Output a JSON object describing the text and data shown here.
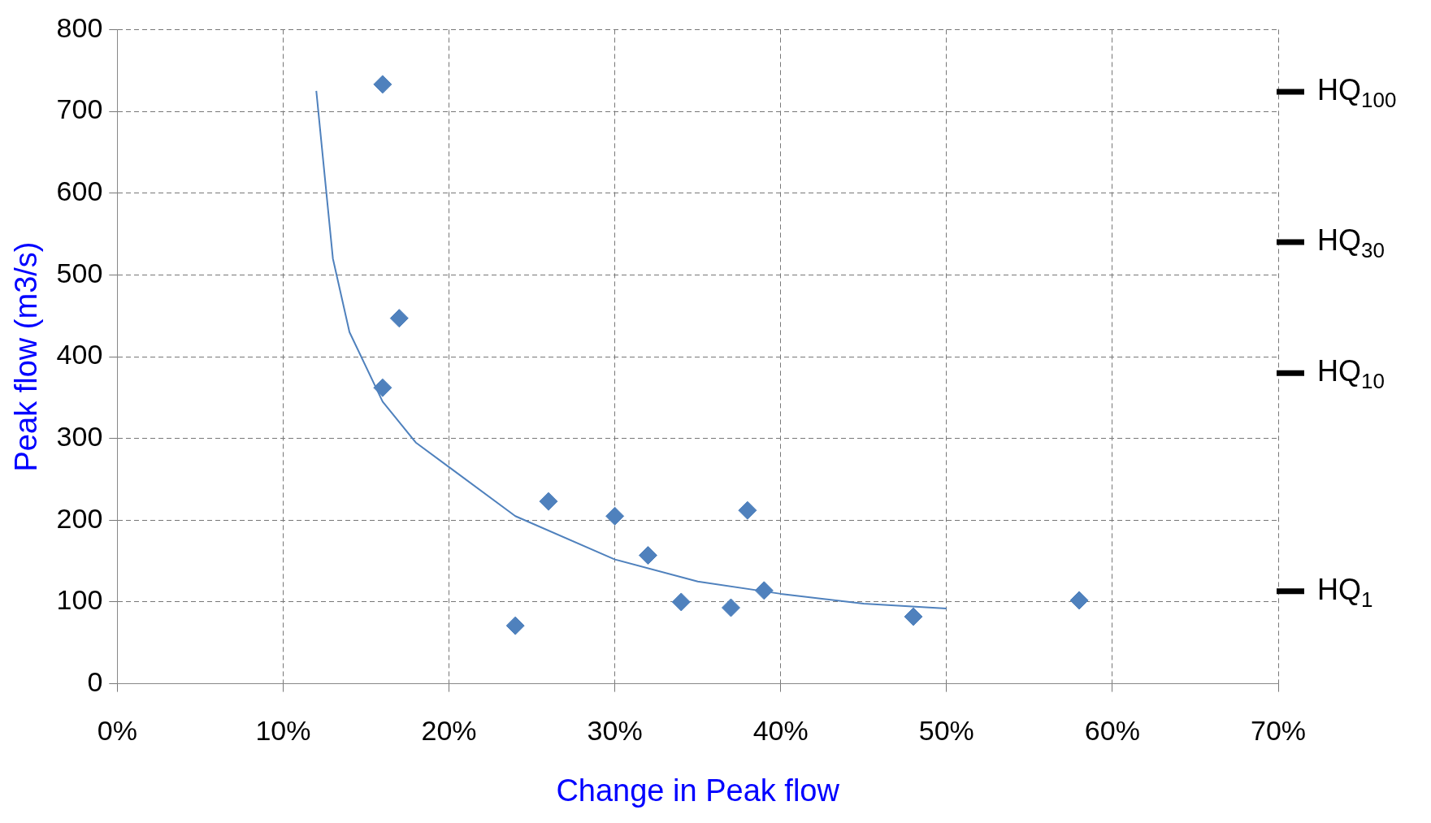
{
  "chart_data": {
    "type": "scatter",
    "xlabel": "Change in Peak flow",
    "ylabel": "Peak flow (m3/s)",
    "xlim": [
      0,
      70
    ],
    "xticks": [
      {
        "value": 0,
        "label": "0%"
      },
      {
        "value": 10,
        "label": "10%"
      },
      {
        "value": 20,
        "label": "20%"
      },
      {
        "value": 30,
        "label": "30%"
      },
      {
        "value": 40,
        "label": "40%"
      },
      {
        "value": 50,
        "label": "50%"
      },
      {
        "value": 60,
        "label": "60%"
      },
      {
        "value": 70,
        "label": "70%"
      }
    ],
    "ylim": [
      0,
      800
    ],
    "yticks": [
      0,
      100,
      200,
      300,
      400,
      500,
      600,
      700,
      800
    ],
    "grid": true,
    "legend": false,
    "series": [
      {
        "marker": "diamond",
        "color": "#4f81bd",
        "x": [
          16,
          17,
          16,
          24,
          26,
          30,
          32,
          34,
          37,
          38,
          39,
          48,
          58
        ],
        "values": [
          733,
          447,
          362,
          71,
          223,
          205,
          157,
          100,
          93,
          212,
          114,
          82,
          102
        ]
      },
      {
        "type": "line",
        "color": "#4f81bd",
        "line_style": "solid",
        "x": [
          12,
          13,
          14,
          16,
          18,
          20,
          24,
          30,
          35,
          40,
          45,
          50
        ],
        "values": [
          725,
          520,
          430,
          345,
          295,
          265,
          205,
          152,
          125,
          110,
          98,
          92
        ]
      }
    ],
    "ref_lines": [
      {
        "axis": "y",
        "value": 724,
        "label": "HQ$_{100}$",
        "color": "#000000"
      },
      {
        "axis": "y",
        "value": 540,
        "label": "HQ$_{30}$",
        "color": "#000000"
      },
      {
        "axis": "y",
        "value": 380,
        "label": "HQ$_{10}$",
        "color": "#000000"
      },
      {
        "axis": "y",
        "value": 113,
        "label": "HQ$_{1}$",
        "color": "#000000"
      }
    ]
  }
}
